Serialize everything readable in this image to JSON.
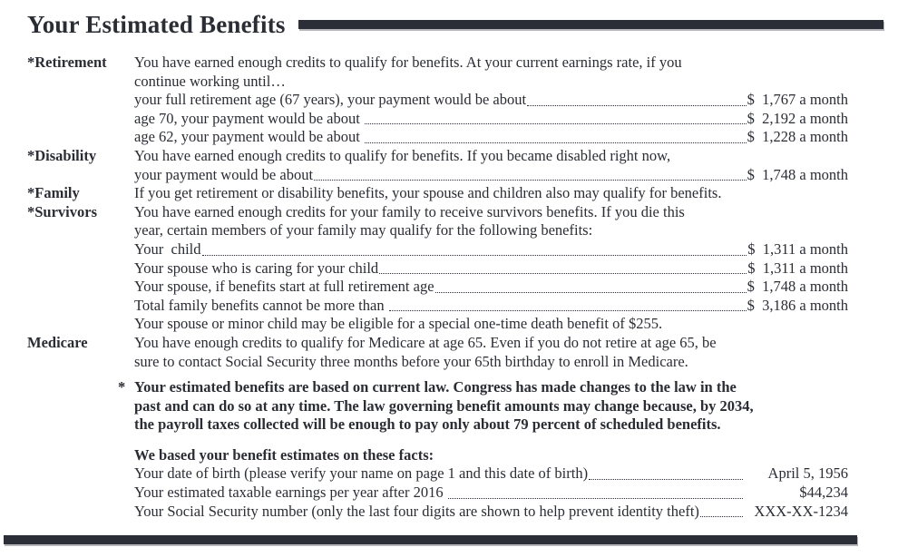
{
  "page": {
    "title": "Your Estimated Benefits"
  },
  "colors": {
    "ink": "#2b2d34",
    "bar": "#2b2e37"
  },
  "benefits": {
    "rows": [
      {
        "label": "*Retirement",
        "text": "You have earned enough credits to qualify for benefits. At your current earnings rate, if you"
      },
      {
        "text": "continue working until…"
      },
      {
        "text": "your full retirement age (67 years), your payment would be about",
        "value": "$  1,767 a month"
      },
      {
        "text": "age 70, your payment would be about ",
        "value": "$  2,192 a month"
      },
      {
        "text": "age 62, your payment would be about ",
        "value": "$  1,228 a month"
      },
      {
        "label": "*Disability",
        "text": "You have earned enough credits to qualify for benefits. If you became disabled right now,"
      },
      {
        "text": "your payment would be about",
        "value": "$  1,748 a month"
      },
      {
        "label": "*Family",
        "text": "If you get retirement or disability benefits, your spouse and children also may qualify for benefits."
      },
      {
        "label": "*Survivors",
        "text": "You have earned enough credits for your family to receive survivors benefits. If you die this"
      },
      {
        "text": "year, certain members of your family may qualify for the following benefits:"
      },
      {
        "text": "Your  child",
        "value": "$  1,311 a month"
      },
      {
        "text": "Your spouse who is caring for your child",
        "value": "$  1,311 a month"
      },
      {
        "text": "Your spouse, if benefits start at full retirement age",
        "value": "$  1,748 a month"
      },
      {
        "text": "Total family benefits cannot be more than ",
        "value": "$  3,186 a month"
      },
      {
        "text": "Your spouse or minor child may be eligible for a special one-time death benefit of $255."
      },
      {
        "label": "Medicare",
        "text": "You have enough credits to qualify for Medicare at age 65. Even if you do not retire at age 65, be"
      },
      {
        "text": "sure to contact Social Security three months before your 65th birthday to enroll in Medicare."
      }
    ]
  },
  "law_note": {
    "marker": "*",
    "lines": [
      "Your estimated benefits are based on current law. Congress has made changes to the law in the",
      "past and can do so at any time. The law governing benefit amounts may change because, by 2034,",
      "the payroll taxes collected will be enough to pay only about 79 percent of scheduled benefits."
    ]
  },
  "facts": {
    "heading": "We based your benefit estimates on these facts:",
    "rows": [
      {
        "text": "Your date of birth (please verify your name on page 1 and this date of birth)",
        "value": "April 5, 1956"
      },
      {
        "text": "Your estimated taxable earnings per year after 2016 ",
        "value": "$44,234"
      },
      {
        "text": "Your Social Security number (only the last four digits are shown to help prevent identity theft)",
        "value": "XXX-XX-1234"
      }
    ]
  }
}
